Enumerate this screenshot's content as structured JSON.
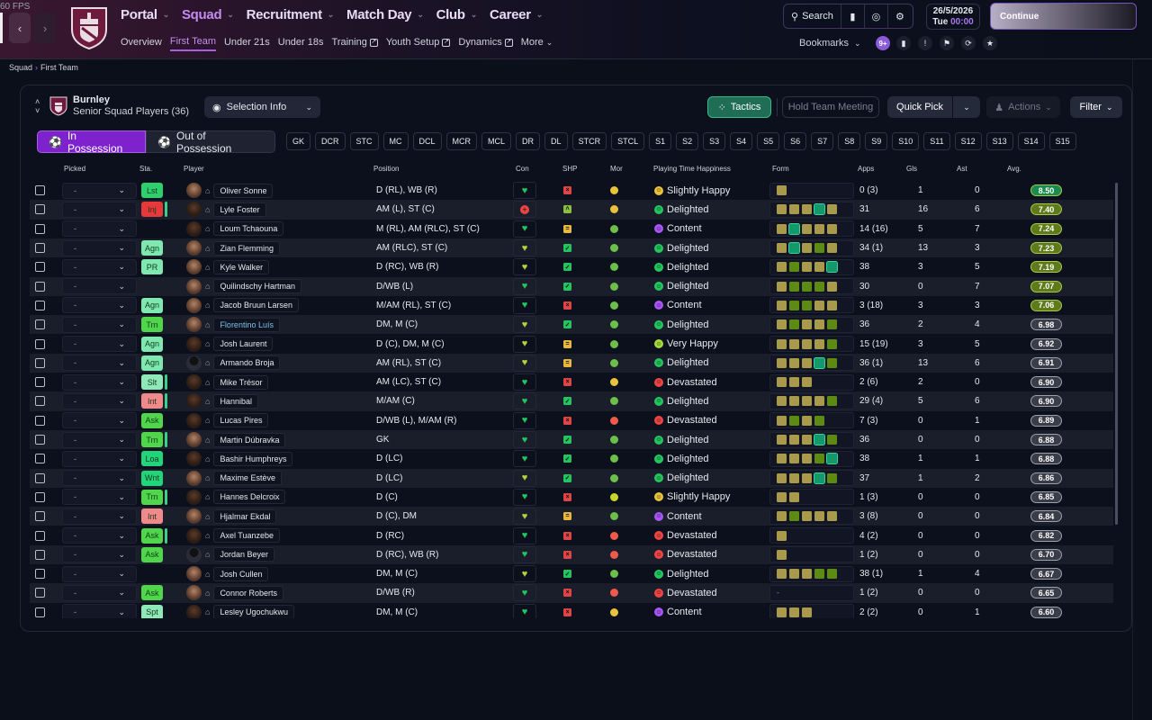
{
  "fps": "60 FPS",
  "colors": {
    "accent": "#a560e0",
    "tactics": "#1f6d54",
    "form_yellow": "#a89a4a",
    "form_green": "#5c8a12",
    "form_teal": "#14996a"
  },
  "nav": {
    "back_icon": "chevron-left-icon",
    "forward_icon": "chevron-right-icon",
    "main": [
      {
        "label": "Portal",
        "active": false
      },
      {
        "label": "Squad",
        "active": true
      },
      {
        "label": "Recruitment",
        "active": false
      },
      {
        "label": "Match Day",
        "active": false
      },
      {
        "label": "Club",
        "active": false
      },
      {
        "label": "Career",
        "active": false
      }
    ],
    "sub": [
      {
        "label": "Overview",
        "ext": false,
        "active": false
      },
      {
        "label": "First Team",
        "ext": false,
        "active": true
      },
      {
        "label": "Under 21s",
        "ext": false,
        "active": false
      },
      {
        "label": "Under 18s",
        "ext": false,
        "active": false
      },
      {
        "label": "Training",
        "ext": true,
        "active": false
      },
      {
        "label": "Youth Setup",
        "ext": true,
        "active": false
      },
      {
        "label": "Dynamics",
        "ext": true,
        "active": false
      },
      {
        "label": "More",
        "ext": false,
        "active": false
      }
    ]
  },
  "toolbar": {
    "search_label": "Search",
    "date": "26/5/2026",
    "day": "Tue",
    "time": "00:00",
    "continue_label": "Continue",
    "bookmarks_label": "Bookmarks",
    "inbox_badge": "9+"
  },
  "breadcrumb": {
    "root": "Squad",
    "current": "First Team"
  },
  "club": {
    "name": "Burnley",
    "subtitle": "Senior Squad Players (36)"
  },
  "actions": {
    "selection_info": "Selection Info",
    "tactics": "Tactics",
    "hold_meeting": "Hold Team Meeting",
    "quick_pick": "Quick Pick",
    "actions": "Actions",
    "filter": "Filter"
  },
  "possession": {
    "in": "In Possession",
    "out": "Out of Possession"
  },
  "positions": [
    "GK",
    "DCR",
    "STC",
    "MC",
    "DCL",
    "MCR",
    "MCL",
    "DR",
    "DL",
    "STCR",
    "STCL",
    "S1",
    "S2",
    "S3",
    "S4",
    "S5",
    "S6",
    "S7",
    "S8",
    "S9",
    "S10",
    "S11",
    "S12",
    "S13",
    "S14",
    "S15"
  ],
  "columns": {
    "picked": "Picked",
    "sta": "Sta.",
    "player": "Player",
    "position": "Position",
    "con": "Con",
    "shp": "SHP",
    "mor": "Mor",
    "pth": "Playing Time Happiness",
    "form": "Form",
    "apps": "Apps",
    "gls": "Gls",
    "ast": "Ast",
    "avg": "Avg."
  },
  "players": [
    {
      "picked": "-",
      "sta": "Lst",
      "sta_color": "#2fcf6e",
      "marker": false,
      "face": "light",
      "name": "Oliver Sonne",
      "link": false,
      "position": "D (RL), WB (R)",
      "con": "heart",
      "shp": "x",
      "mor": "yellow",
      "hap": "Slightly Happy",
      "hap_color": "#e8c23a",
      "form": [
        "y"
      ],
      "apps": "0 (3)",
      "gls": "1",
      "ast": "0",
      "avg": "8.50",
      "avg_color": "#1a8a4e"
    },
    {
      "picked": "-",
      "sta": "Inj",
      "sta_color": "#e8383a",
      "marker": true,
      "face": "dark",
      "name": "Lyle Foster",
      "link": false,
      "position": "AM (L), ST (C)",
      "con": "plus",
      "shp": "up",
      "mor": "yellow",
      "hap": "Delighted",
      "hap_color": "#22c55e",
      "form": [
        "y",
        "y",
        "y",
        "t",
        "y"
      ],
      "apps": "31",
      "gls": "16",
      "ast": "6",
      "avg": "7.40",
      "avg_color": "#5f7a1a"
    },
    {
      "picked": "-",
      "sta": "",
      "sta_color": "",
      "marker": false,
      "face": "dark",
      "name": "Loum Tchaouna",
      "link": false,
      "position": "M (RL), AM (RLC), ST (C)",
      "con": "heart",
      "shp": "eq",
      "mor": "green",
      "hap": "Content",
      "hap_color": "#a855f7",
      "form": [
        "y",
        "t",
        "y",
        "y",
        "y"
      ],
      "apps": "14 (16)",
      "gls": "5",
      "ast": "7",
      "avg": "7.24",
      "avg_color": "#5f7a1a"
    },
    {
      "picked": "-",
      "sta": "Agn",
      "sta_color": "#7ee8b0",
      "marker": false,
      "face": "light",
      "name": "Zian Flemming",
      "link": false,
      "position": "AM (RLC), ST (C)",
      "con": "heart-y",
      "shp": "check",
      "mor": "green",
      "hap": "Delighted",
      "hap_color": "#22c55e",
      "form": [
        "y",
        "t",
        "y",
        "g",
        "y"
      ],
      "apps": "34 (1)",
      "gls": "13",
      "ast": "3",
      "avg": "7.23",
      "avg_color": "#5f7a1a"
    },
    {
      "picked": "-",
      "sta": "PR",
      "sta_color": "#7ee8b0",
      "marker": false,
      "face": "light",
      "name": "Kyle Walker",
      "link": false,
      "position": "D (RC), WB (R)",
      "con": "heart-y",
      "shp": "check",
      "mor": "green",
      "hap": "Delighted",
      "hap_color": "#22c55e",
      "form": [
        "y",
        "g",
        "y",
        "y",
        "t"
      ],
      "apps": "38",
      "gls": "3",
      "ast": "5",
      "avg": "7.19",
      "avg_color": "#5f7a1a"
    },
    {
      "picked": "-",
      "sta": "",
      "sta_color": "",
      "marker": false,
      "face": "light",
      "name": "Quilindschy Hartman",
      "link": false,
      "position": "D/WB (L)",
      "con": "heart",
      "shp": "check",
      "mor": "green",
      "hap": "Delighted",
      "hap_color": "#22c55e",
      "form": [
        "y",
        "g",
        "g",
        "g",
        "y"
      ],
      "apps": "30",
      "gls": "0",
      "ast": "7",
      "avg": "7.07",
      "avg_color": "#5f7a1a"
    },
    {
      "picked": "-",
      "sta": "Agn",
      "sta_color": "#7ee8b0",
      "marker": false,
      "face": "light",
      "name": "Jacob Bruun Larsen",
      "link": false,
      "position": "M/AM (RL), ST (C)",
      "con": "heart",
      "shp": "x",
      "mor": "green",
      "hap": "Content",
      "hap_color": "#a855f7",
      "form": [
        "y",
        "g",
        "g",
        "y",
        "y"
      ],
      "apps": "3 (18)",
      "gls": "3",
      "ast": "3",
      "avg": "7.06",
      "avg_color": "#5f7a1a"
    },
    {
      "picked": "-",
      "sta": "Trn",
      "sta_color": "#4fd64a",
      "marker": false,
      "face": "light",
      "name": "Florentino Luís",
      "link": true,
      "position": "DM, M (C)",
      "con": "heart-y",
      "shp": "check",
      "mor": "green",
      "hap": "Delighted",
      "hap_color": "#22c55e",
      "form": [
        "y",
        "g",
        "y",
        "y",
        "g"
      ],
      "apps": "36",
      "gls": "2",
      "ast": "4",
      "avg": "6.98",
      "avg_color": "#3a3d48"
    },
    {
      "picked": "-",
      "sta": "Agn",
      "sta_color": "#7ee8b0",
      "marker": false,
      "face": "dark",
      "name": "Josh Laurent",
      "link": false,
      "position": "D (C), DM, M (C)",
      "con": "heart-y",
      "shp": "eq",
      "mor": "green",
      "hap": "Very Happy",
      "hap_color": "#a3d93a",
      "form": [
        "y",
        "y",
        "y",
        "y",
        "g"
      ],
      "apps": "15 (19)",
      "gls": "3",
      "ast": "5",
      "avg": "6.92",
      "avg_color": "#3a3d48"
    },
    {
      "picked": "-",
      "sta": "Agn",
      "sta_color": "#7ee8b0",
      "marker": false,
      "face": "sil",
      "name": "Armando Broja",
      "link": false,
      "position": "AM (RL), ST (C)",
      "con": "heart-y",
      "shp": "eq",
      "mor": "green",
      "hap": "Delighted",
      "hap_color": "#22c55e",
      "form": [
        "y",
        "y",
        "y",
        "t",
        "g"
      ],
      "apps": "36 (1)",
      "gls": "13",
      "ast": "6",
      "avg": "6.91",
      "avg_color": "#3a3d48"
    },
    {
      "picked": "-",
      "sta": "Slt",
      "sta_color": "#8fe8b8",
      "marker": true,
      "face": "dark",
      "name": "Mike Trésor",
      "link": false,
      "position": "AM (LC), ST (C)",
      "con": "heart",
      "shp": "x",
      "mor": "yellow",
      "hap": "Devastated",
      "hap_color": "#ef4444",
      "form": [
        "y",
        "y",
        "y"
      ],
      "apps": "2 (6)",
      "gls": "2",
      "ast": "0",
      "avg": "6.90",
      "avg_color": "#3a3d48"
    },
    {
      "picked": "-",
      "sta": "Int",
      "sta_color": "#f08a8a",
      "marker": true,
      "face": "dark",
      "name": "Hannibal",
      "link": false,
      "position": "M/AM (C)",
      "con": "heart",
      "shp": "check",
      "mor": "green",
      "hap": "Delighted",
      "hap_color": "#22c55e",
      "form": [
        "y",
        "y",
        "y",
        "y",
        "g"
      ],
      "apps": "29 (4)",
      "gls": "5",
      "ast": "6",
      "avg": "6.90",
      "avg_color": "#3a3d48"
    },
    {
      "picked": "-",
      "sta": "Ask",
      "sta_color": "#4fd64a",
      "marker": false,
      "face": "dark",
      "name": "Lucas Pires",
      "link": false,
      "position": "D/WB (L), M/AM (R)",
      "con": "heart",
      "shp": "x",
      "mor": "red",
      "hap": "Devastated",
      "hap_color": "#ef4444",
      "form": [
        "y",
        "g",
        "y",
        "g"
      ],
      "apps": "7 (3)",
      "gls": "0",
      "ast": "1",
      "avg": "6.89",
      "avg_color": "#3a3d48"
    },
    {
      "picked": "-",
      "sta": "Trn",
      "sta_color": "#4fd64a",
      "marker": true,
      "face": "light",
      "name": "Martin Dúbravka",
      "link": false,
      "position": "GK",
      "con": "heart",
      "shp": "check",
      "mor": "green",
      "hap": "Delighted",
      "hap_color": "#22c55e",
      "form": [
        "y",
        "y",
        "y",
        "t",
        "g"
      ],
      "apps": "36",
      "gls": "0",
      "ast": "0",
      "avg": "6.88",
      "avg_color": "#3a3d48"
    },
    {
      "picked": "-",
      "sta": "Loa",
      "sta_color": "#22d47a",
      "marker": false,
      "face": "dark",
      "name": "Bashir Humphreys",
      "link": false,
      "position": "D (LC)",
      "con": "heart",
      "shp": "check",
      "mor": "green",
      "hap": "Delighted",
      "hap_color": "#22c55e",
      "form": [
        "y",
        "y",
        "y",
        "g",
        "t"
      ],
      "apps": "38",
      "gls": "1",
      "ast": "1",
      "avg": "6.88",
      "avg_color": "#3a3d48"
    },
    {
      "picked": "-",
      "sta": "Wnt",
      "sta_color": "#22d47a",
      "marker": false,
      "face": "light",
      "name": "Maxime Estève",
      "link": false,
      "position": "D (LC)",
      "con": "heart-y",
      "shp": "check",
      "mor": "green",
      "hap": "Delighted",
      "hap_color": "#22c55e",
      "form": [
        "y",
        "y",
        "y",
        "t",
        "g"
      ],
      "apps": "37",
      "gls": "1",
      "ast": "2",
      "avg": "6.86",
      "avg_color": "#3a3d48"
    },
    {
      "picked": "-",
      "sta": "Trn",
      "sta_color": "#4fd64a",
      "marker": true,
      "face": "dark",
      "name": "Hannes Delcroix",
      "link": false,
      "position": "D (C)",
      "con": "heart",
      "shp": "x",
      "mor": "lime",
      "hap": "Slightly Happy",
      "hap_color": "#e8c23a",
      "form": [
        "y",
        "y"
      ],
      "apps": "1 (3)",
      "gls": "0",
      "ast": "0",
      "avg": "6.85",
      "avg_color": "#3a3d48"
    },
    {
      "picked": "-",
      "sta": "Int",
      "sta_color": "#f08a8a",
      "marker": false,
      "face": "light",
      "name": "Hjalmar Ekdal",
      "link": false,
      "position": "D (C), DM",
      "con": "heart-y",
      "shp": "eq",
      "mor": "green",
      "hap": "Content",
      "hap_color": "#a855f7",
      "form": [
        "y",
        "g",
        "y",
        "y",
        "y"
      ],
      "apps": "3 (8)",
      "gls": "0",
      "ast": "0",
      "avg": "6.84",
      "avg_color": "#3a3d48"
    },
    {
      "picked": "-",
      "sta": "Ask",
      "sta_color": "#4fd64a",
      "marker": true,
      "face": "dark",
      "name": "Axel Tuanzebe",
      "link": false,
      "position": "D (RC)",
      "con": "heart",
      "shp": "x",
      "mor": "red",
      "hap": "Devastated",
      "hap_color": "#ef4444",
      "form": [
        "y"
      ],
      "apps": "4 (2)",
      "gls": "0",
      "ast": "0",
      "avg": "6.82",
      "avg_color": "#3a3d48"
    },
    {
      "picked": "-",
      "sta": "Ask",
      "sta_color": "#4fd64a",
      "marker": false,
      "face": "sil",
      "name": "Jordan Beyer",
      "link": false,
      "position": "D (RC), WB (R)",
      "con": "heart",
      "shp": "x",
      "mor": "red",
      "hap": "Devastated",
      "hap_color": "#ef4444",
      "form": [
        "y"
      ],
      "apps": "1 (2)",
      "gls": "0",
      "ast": "0",
      "avg": "6.70",
      "avg_color": "#3a3d48"
    },
    {
      "picked": "-",
      "sta": "",
      "sta_color": "",
      "marker": false,
      "face": "light",
      "name": "Josh Cullen",
      "link": false,
      "position": "DM, M (C)",
      "con": "heart-y",
      "shp": "check",
      "mor": "green",
      "hap": "Delighted",
      "hap_color": "#22c55e",
      "form": [
        "y",
        "y",
        "y",
        "g",
        "g"
      ],
      "apps": "38 (1)",
      "gls": "1",
      "ast": "4",
      "avg": "6.67",
      "avg_color": "#3a3d48"
    },
    {
      "picked": "-",
      "sta": "Ask",
      "sta_color": "#4fd64a",
      "marker": false,
      "face": "light",
      "name": "Connor Roberts",
      "link": false,
      "position": "D/WB (R)",
      "con": "heart",
      "shp": "x",
      "mor": "red",
      "hap": "Devastated",
      "hap_color": "#ef4444",
      "form": [],
      "form_empty": "-",
      "apps": "1 (2)",
      "gls": "0",
      "ast": "0",
      "avg": "6.65",
      "avg_color": "#3a3d48"
    },
    {
      "picked": "-",
      "sta": "Spt",
      "sta_color": "#8fe8b8",
      "marker": false,
      "face": "dark",
      "name": "Lesley Ugochukwu",
      "link": false,
      "position": "DM, M (C)",
      "con": "heart",
      "shp": "x",
      "mor": "yellow",
      "hap": "Content",
      "hap_color": "#a855f7",
      "form": [
        "y",
        "y",
        "y"
      ],
      "apps": "2 (2)",
      "gls": "0",
      "ast": "1",
      "avg": "6.60",
      "avg_color": "#3a3d48"
    }
  ]
}
